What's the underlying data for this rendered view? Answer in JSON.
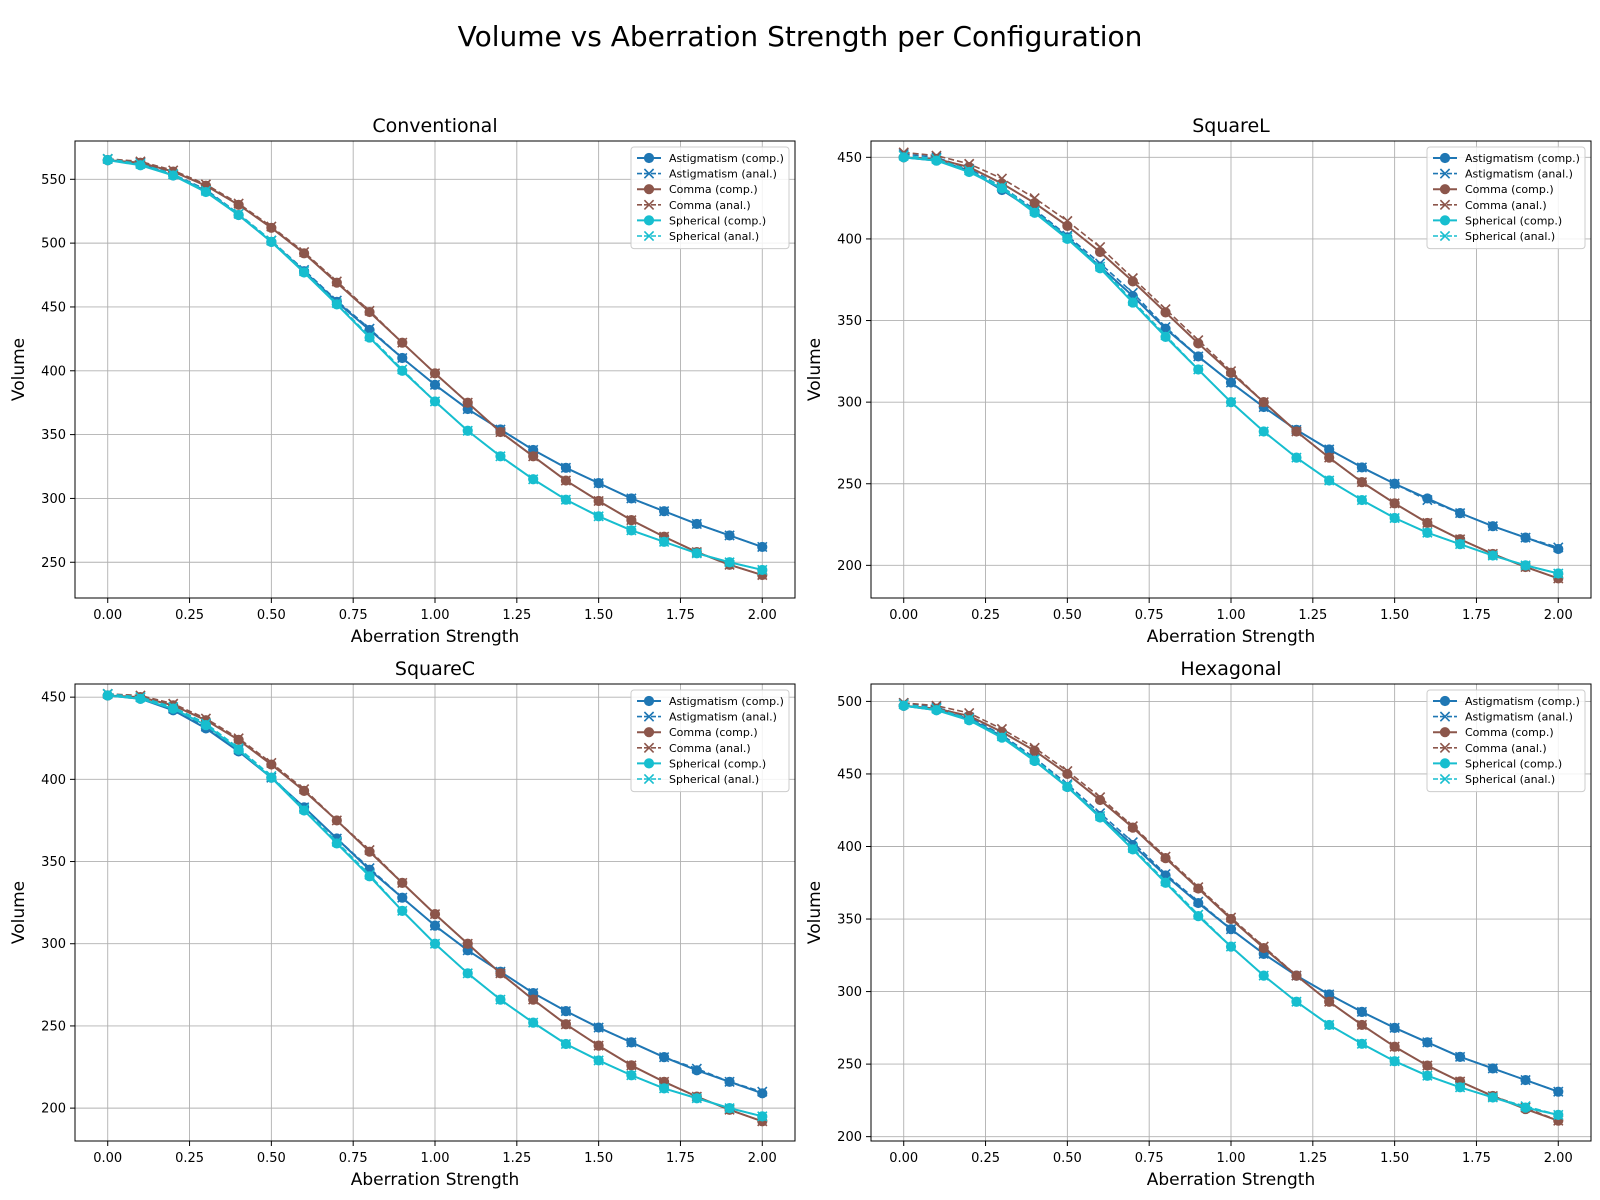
{
  "figure_title": "Volume vs Aberration Strength per Configuration",
  "colors": {
    "astigmatism": "#1f77b4",
    "comma": "#8c564b",
    "spherical": "#17becf"
  },
  "chart_data": [
    {
      "type": "line",
      "title": "Conventional",
      "xlabel": "Aberration Strength",
      "ylabel": "Volume",
      "xlim": [
        -0.1,
        2.1
      ],
      "ylim": [
        222,
        580
      ],
      "xticks": [
        "0.00",
        "0.25",
        "0.50",
        "0.75",
        "1.00",
        "1.25",
        "1.50",
        "1.75",
        "2.00"
      ],
      "yticks": [
        "250",
        "300",
        "350",
        "400",
        "450",
        "500",
        "550"
      ],
      "grid": true,
      "legend_position": "top-right",
      "x": [
        0.0,
        0.1,
        0.2,
        0.3,
        0.4,
        0.5,
        0.6,
        0.7,
        0.8,
        0.9,
        1.0,
        1.1,
        1.2,
        1.3,
        1.4,
        1.5,
        1.6,
        1.7,
        1.8,
        1.9,
        2.0
      ],
      "series": [
        {
          "name": "Astigmatism (comp.)",
          "color": "astigmatism",
          "marker": "circle",
          "dash": false,
          "values": [
            565,
            562,
            553,
            541,
            522,
            501,
            478,
            454,
            432,
            410,
            389,
            370,
            354,
            338,
            324,
            312,
            300,
            290,
            280,
            271,
            262
          ]
        },
        {
          "name": "Astigmatism (anal.)",
          "color": "astigmatism",
          "marker": "x",
          "dash": true,
          "values": [
            566,
            563,
            554,
            542,
            523,
            502,
            479,
            455,
            433,
            410,
            389,
            370,
            354,
            338,
            324,
            312,
            300,
            290,
            280,
            271,
            262
          ]
        },
        {
          "name": "Comma (comp.)",
          "color": "comma",
          "marker": "circle",
          "dash": false,
          "values": [
            565,
            563,
            556,
            545,
            530,
            512,
            492,
            469,
            446,
            422,
            398,
            375,
            352,
            333,
            314,
            298,
            283,
            270,
            258,
            248,
            240
          ]
        },
        {
          "name": "Comma (anal.)",
          "color": "comma",
          "marker": "x",
          "dash": true,
          "values": [
            566,
            564,
            557,
            546,
            531,
            513,
            493,
            470,
            447,
            422,
            398,
            375,
            352,
            333,
            314,
            298,
            283,
            270,
            258,
            248,
            240
          ]
        },
        {
          "name": "Spherical (comp.)",
          "color": "spherical",
          "marker": "circle",
          "dash": false,
          "values": [
            565,
            561,
            553,
            540,
            522,
            501,
            477,
            452,
            426,
            400,
            376,
            353,
            333,
            315,
            299,
            286,
            275,
            266,
            257,
            250,
            244
          ]
        },
        {
          "name": "Spherical (anal.)",
          "color": "spherical",
          "marker": "x",
          "dash": true,
          "values": [
            566,
            562,
            554,
            541,
            523,
            502,
            478,
            453,
            427,
            401,
            376,
            353,
            333,
            315,
            299,
            286,
            275,
            266,
            257,
            250,
            244
          ]
        }
      ]
    },
    {
      "type": "line",
      "title": "SquareL",
      "xlabel": "Aberration Strength",
      "ylabel": "Volume",
      "xlim": [
        -0.1,
        2.1
      ],
      "ylim": [
        180,
        460
      ],
      "xticks": [
        "0.00",
        "0.25",
        "0.50",
        "0.75",
        "1.00",
        "1.25",
        "1.50",
        "1.75",
        "2.00"
      ],
      "yticks": [
        "200",
        "250",
        "300",
        "350",
        "400",
        "450"
      ],
      "grid": true,
      "legend_position": "top-right",
      "x": [
        0.0,
        0.1,
        0.2,
        0.3,
        0.4,
        0.5,
        0.6,
        0.7,
        0.8,
        0.9,
        1.0,
        1.1,
        1.2,
        1.3,
        1.4,
        1.5,
        1.6,
        1.7,
        1.8,
        1.9,
        2.0
      ],
      "series": [
        {
          "name": "Astigmatism (comp.)",
          "color": "astigmatism",
          "marker": "circle",
          "dash": false,
          "values": [
            450,
            448,
            442,
            430,
            417,
            401,
            383,
            365,
            345,
            328,
            312,
            297,
            283,
            271,
            260,
            250,
            241,
            232,
            224,
            217,
            210
          ]
        },
        {
          "name": "Astigmatism (anal.)",
          "color": "astigmatism",
          "marker": "x",
          "dash": true,
          "values": [
            452,
            450,
            443,
            432,
            418,
            402,
            385,
            367,
            346,
            328,
            312,
            297,
            283,
            271,
            260,
            250,
            240,
            232,
            224,
            217,
            211
          ]
        },
        {
          "name": "Comma (comp.)",
          "color": "comma",
          "marker": "circle",
          "dash": false,
          "values": [
            450,
            449,
            444,
            434,
            422,
            408,
            392,
            374,
            355,
            336,
            318,
            300,
            282,
            266,
            251,
            238,
            226,
            216,
            207,
            199,
            192
          ]
        },
        {
          "name": "Comma (anal.)",
          "color": "comma",
          "marker": "x",
          "dash": true,
          "values": [
            453,
            451,
            446,
            437,
            425,
            411,
            395,
            376,
            357,
            338,
            319,
            300,
            282,
            266,
            251,
            238,
            226,
            216,
            207,
            199,
            192
          ]
        },
        {
          "name": "Spherical (comp.)",
          "color": "spherical",
          "marker": "circle",
          "dash": false,
          "values": [
            450,
            448,
            441,
            431,
            416,
            400,
            382,
            361,
            340,
            320,
            300,
            282,
            266,
            252,
            240,
            229,
            220,
            213,
            206,
            200,
            195
          ]
        },
        {
          "name": "Spherical (anal.)",
          "color": "spherical",
          "marker": "x",
          "dash": true,
          "values": [
            451,
            449,
            442,
            432,
            417,
            401,
            383,
            362,
            341,
            320,
            300,
            282,
            266,
            252,
            240,
            229,
            220,
            213,
            206,
            200,
            195
          ]
        }
      ]
    },
    {
      "type": "line",
      "title": "SquareC",
      "xlabel": "Aberration Strength",
      "ylabel": "Volume",
      "xlim": [
        -0.1,
        2.1
      ],
      "ylim": [
        180,
        458
      ],
      "xticks": [
        "0.00",
        "0.25",
        "0.50",
        "0.75",
        "1.00",
        "1.25",
        "1.50",
        "1.75",
        "2.00"
      ],
      "yticks": [
        "200",
        "250",
        "300",
        "350",
        "400",
        "450"
      ],
      "grid": true,
      "legend_position": "top-right",
      "x": [
        0.0,
        0.1,
        0.2,
        0.3,
        0.4,
        0.5,
        0.6,
        0.7,
        0.8,
        0.9,
        1.0,
        1.1,
        1.2,
        1.3,
        1.4,
        1.5,
        1.6,
        1.7,
        1.8,
        1.9,
        2.0
      ],
      "series": [
        {
          "name": "Astigmatism (comp.)",
          "color": "astigmatism",
          "marker": "circle",
          "dash": false,
          "values": [
            451,
            449,
            442,
            431,
            417,
            401,
            383,
            364,
            345,
            328,
            311,
            296,
            283,
            270,
            259,
            249,
            240,
            231,
            223,
            216,
            209
          ]
        },
        {
          "name": "Astigmatism (anal.)",
          "color": "astigmatism",
          "marker": "x",
          "dash": true,
          "values": [
            452,
            450,
            443,
            432,
            418,
            401,
            383,
            364,
            346,
            328,
            311,
            296,
            283,
            270,
            259,
            249,
            240,
            231,
            224,
            216,
            210
          ]
        },
        {
          "name": "Comma (comp.)",
          "color": "comma",
          "marker": "circle",
          "dash": false,
          "values": [
            451,
            450,
            445,
            436,
            424,
            409,
            393,
            375,
            356,
            337,
            318,
            300,
            282,
            266,
            251,
            238,
            226,
            216,
            207,
            199,
            192
          ]
        },
        {
          "name": "Comma (anal.)",
          "color": "comma",
          "marker": "x",
          "dash": true,
          "values": [
            452,
            451,
            446,
            437,
            425,
            410,
            394,
            375,
            357,
            337,
            318,
            300,
            282,
            266,
            251,
            238,
            226,
            216,
            207,
            199,
            192
          ]
        },
        {
          "name": "Spherical (comp.)",
          "color": "spherical",
          "marker": "circle",
          "dash": false,
          "values": [
            451,
            449,
            443,
            433,
            418,
            401,
            381,
            361,
            341,
            320,
            300,
            282,
            266,
            252,
            239,
            229,
            220,
            212,
            206,
            200,
            195
          ]
        },
        {
          "name": "Spherical (anal.)",
          "color": "spherical",
          "marker": "x",
          "dash": true,
          "values": [
            452,
            450,
            444,
            434,
            419,
            402,
            382,
            362,
            342,
            320,
            300,
            282,
            266,
            252,
            239,
            229,
            220,
            212,
            206,
            200,
            195
          ]
        }
      ]
    },
    {
      "type": "line",
      "title": "Hexagonal",
      "xlabel": "Aberration Strength",
      "ylabel": "Volume",
      "xlim": [
        -0.1,
        2.1
      ],
      "ylim": [
        197,
        512
      ],
      "xticks": [
        "0.00",
        "0.25",
        "0.50",
        "0.75",
        "1.00",
        "1.25",
        "1.50",
        "1.75",
        "2.00"
      ],
      "yticks": [
        "200",
        "250",
        "300",
        "350",
        "400",
        "450",
        "500"
      ],
      "grid": true,
      "legend_position": "top-right",
      "x": [
        0.0,
        0.1,
        0.2,
        0.3,
        0.4,
        0.5,
        0.6,
        0.7,
        0.8,
        0.9,
        1.0,
        1.1,
        1.2,
        1.3,
        1.4,
        1.5,
        1.6,
        1.7,
        1.8,
        1.9,
        2.0
      ],
      "series": [
        {
          "name": "Astigmatism (comp.)",
          "color": "astigmatism",
          "marker": "circle",
          "dash": false,
          "values": [
            497,
            494,
            488,
            476,
            459,
            441,
            421,
            401,
            380,
            361,
            343,
            326,
            311,
            298,
            286,
            275,
            265,
            255,
            247,
            239,
            231
          ]
        },
        {
          "name": "Astigmatism (anal.)",
          "color": "astigmatism",
          "marker": "x",
          "dash": true,
          "values": [
            499,
            496,
            489,
            477,
            461,
            443,
            423,
            403,
            381,
            362,
            343,
            326,
            311,
            298,
            286,
            275,
            265,
            255,
            247,
            239,
            231
          ]
        },
        {
          "name": "Comma (comp.)",
          "color": "comma",
          "marker": "circle",
          "dash": false,
          "values": [
            497,
            495,
            490,
            479,
            466,
            450,
            432,
            413,
            392,
            371,
            350,
            330,
            311,
            293,
            277,
            262,
            249,
            238,
            228,
            219,
            211
          ]
        },
        {
          "name": "Comma (anal.)",
          "color": "comma",
          "marker": "x",
          "dash": true,
          "values": [
            499,
            497,
            492,
            481,
            468,
            452,
            434,
            414,
            393,
            372,
            351,
            331,
            311,
            293,
            277,
            262,
            249,
            238,
            228,
            220,
            211
          ]
        },
        {
          "name": "Spherical (comp.)",
          "color": "spherical",
          "marker": "circle",
          "dash": false,
          "values": [
            497,
            494,
            487,
            475,
            459,
            441,
            420,
            398,
            375,
            352,
            331,
            311,
            293,
            277,
            264,
            252,
            242,
            234,
            227,
            220,
            215
          ]
        },
        {
          "name": "Spherical (anal.)",
          "color": "spherical",
          "marker": "x",
          "dash": true,
          "values": [
            498,
            495,
            488,
            476,
            460,
            442,
            421,
            399,
            376,
            353,
            331,
            311,
            293,
            277,
            264,
            252,
            242,
            234,
            227,
            221,
            215
          ]
        }
      ]
    }
  ]
}
